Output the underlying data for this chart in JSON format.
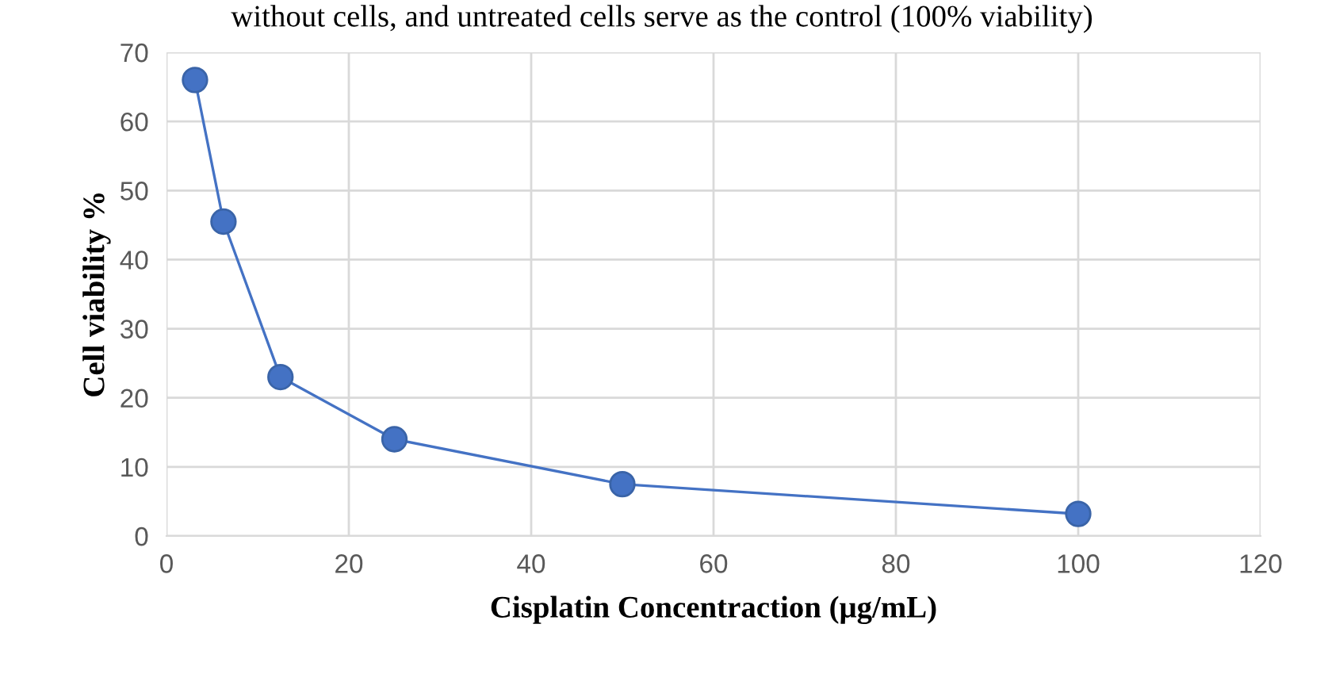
{
  "chart_data": {
    "type": "line",
    "annotations": [
      "without cells, and untreated cells serve as the control (100% viability)"
    ],
    "xlabel": "Cisplatin Concentraction (μg/mL)",
    "ylabel": "Cell viability %",
    "series": [
      {
        "color": "#4472c4",
        "x": [
          3.125,
          6.25,
          12.5,
          25,
          50,
          100
        ],
        "values": [
          66,
          45.5,
          23,
          14,
          7.5,
          3.2
        ]
      }
    ],
    "xlim": [
      0,
      120
    ],
    "xticks": [
      0,
      20,
      40,
      60,
      80,
      100,
      120
    ],
    "ylim": [
      0,
      70
    ],
    "yticks": [
      0,
      10,
      20,
      30,
      40,
      50,
      60,
      70
    ],
    "grid": true,
    "marker": "circle",
    "line_style": "solid",
    "legend": false
  }
}
